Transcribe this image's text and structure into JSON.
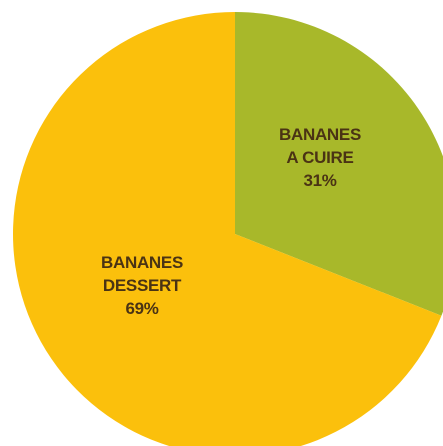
{
  "chart_data": {
    "type": "pie",
    "slices": [
      {
        "label_lines": [
          "BANANES",
          "A CUIRE"
        ],
        "percent_label": "31%",
        "value": 31,
        "color": "#a8b82a"
      },
      {
        "label_lines": [
          "BANANES",
          "DESSERT"
        ],
        "percent_label": "69%",
        "value": 69,
        "color": "#fbc00c"
      }
    ],
    "start_angle_deg": 0,
    "direction": "clockwise",
    "legend": "none",
    "labels_inside": true
  }
}
